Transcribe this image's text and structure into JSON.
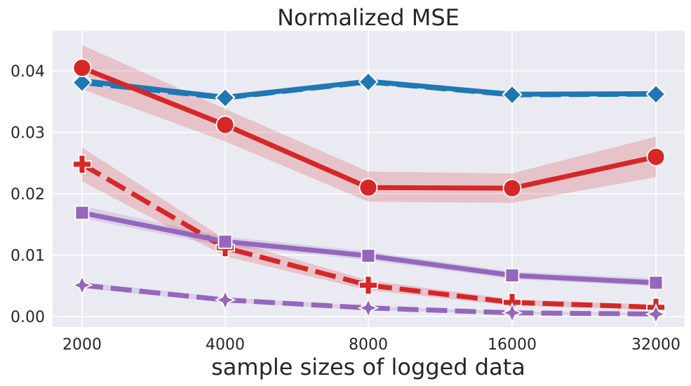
{
  "chart_data": {
    "type": "line",
    "title": "Normalized MSE",
    "xlabel": "sample sizes of logged data",
    "ylabel": "",
    "x": [
      "2000",
      "4000",
      "8000",
      "16000",
      "32000"
    ],
    "yticks": [
      "0.00",
      "0.01",
      "0.02",
      "0.03",
      "0.04"
    ],
    "ylim": [
      -0.002,
      0.0465
    ],
    "grid": true,
    "legend": "none",
    "series": [
      {
        "values": [
          0.0384,
          0.0357,
          0.0383,
          0.0362,
          0.0363
        ],
        "lower": [
          0.0377,
          0.035,
          0.0378,
          0.0357,
          0.0358
        ],
        "upper": [
          0.0391,
          0.0364,
          0.0388,
          0.0367,
          0.0368
        ],
        "color": "#1f77b4",
        "dash": "solid",
        "marker": "diamond",
        "band": false
      },
      {
        "values": [
          0.0381,
          0.0356,
          0.0382,
          0.0361,
          0.0362
        ],
        "lower": [
          0.0381,
          0.0356,
          0.0382,
          0.0361,
          0.0362
        ],
        "upper": [
          0.0381,
          0.0356,
          0.0382,
          0.0361,
          0.0362
        ],
        "color": "#1f77b4",
        "dash": "dashed",
        "marker": "diamond",
        "band": false
      },
      {
        "values": [
          0.0405,
          0.0312,
          0.021,
          0.0209,
          0.026
        ],
        "lower": [
          0.037,
          0.0285,
          0.0187,
          0.0185,
          0.0227
        ],
        "upper": [
          0.0442,
          0.0338,
          0.0236,
          0.0233,
          0.0293
        ],
        "color": "#d62728",
        "dash": "solid",
        "marker": "circle",
        "band": true
      },
      {
        "values": [
          0.0248,
          0.0112,
          0.0051,
          0.0023,
          0.0015
        ],
        "lower": [
          0.022,
          0.0098,
          0.0043,
          0.0018,
          0.0011
        ],
        "upper": [
          0.0275,
          0.0126,
          0.0059,
          0.0028,
          0.0019
        ],
        "color": "#d62728",
        "dash": "dashed",
        "marker": "plus",
        "band": true
      },
      {
        "values": [
          0.0169,
          0.0122,
          0.0099,
          0.0067,
          0.0055
        ],
        "lower": [
          0.016,
          0.0114,
          0.0092,
          0.0061,
          0.0049
        ],
        "upper": [
          0.018,
          0.013,
          0.0106,
          0.0073,
          0.0062
        ],
        "color": "#9467bd",
        "dash": "solid",
        "marker": "square",
        "band": true
      },
      {
        "values": [
          0.0051,
          0.0027,
          0.0014,
          0.0006,
          0.0004
        ],
        "lower": [
          0.0046,
          0.0023,
          0.0011,
          0.0004,
          0.0002
        ],
        "upper": [
          0.0056,
          0.0031,
          0.0017,
          0.0008,
          0.0006
        ],
        "color": "#9467bd",
        "dash": "dashed",
        "marker": "star4",
        "band": true
      }
    ]
  }
}
